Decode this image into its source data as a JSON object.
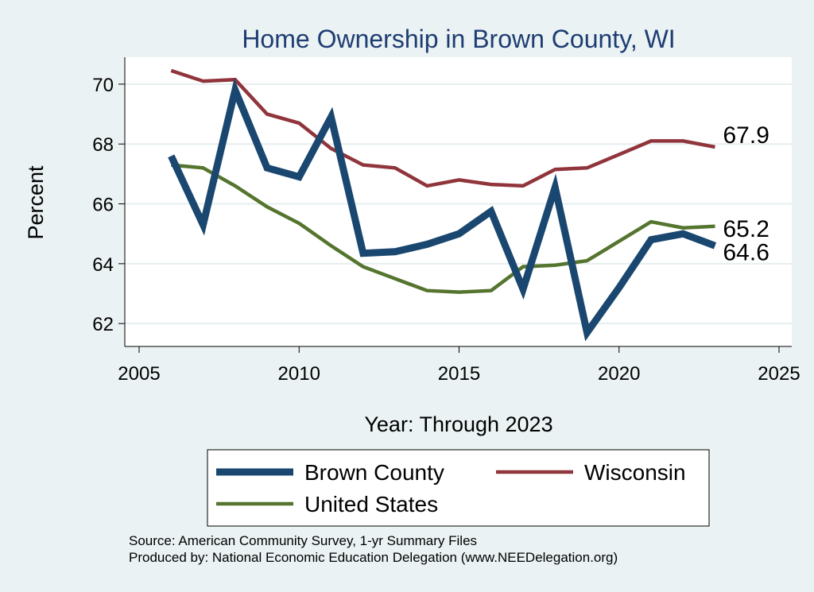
{
  "chart_data": {
    "type": "line",
    "title": "Home Ownership in Brown County, WI",
    "xlabel": "Year: Through 2023",
    "ylabel": "Percent",
    "xlim": [
      2005,
      2025
    ],
    "ylim": [
      61.5,
      70.9
    ],
    "x_ticks": [
      2005,
      2010,
      2015,
      2020,
      2025
    ],
    "y_ticks": [
      62,
      64,
      66,
      68,
      70
    ],
    "grid": true,
    "legend_position": "bottom",
    "x": [
      2006,
      2007,
      2008,
      2009,
      2010,
      2011,
      2012,
      2013,
      2014,
      2015,
      2016,
      2017,
      2018,
      2019,
      2020,
      2021,
      2022,
      2023
    ],
    "series": [
      {
        "name": "Brown County",
        "color": "#1a476f",
        "values": [
          67.6,
          65.3,
          69.8,
          67.2,
          66.9,
          68.9,
          64.35,
          64.4,
          64.65,
          65.0,
          65.75,
          63.15,
          66.55,
          61.7,
          63.2,
          64.8,
          65.0,
          64.6
        ],
        "end_label": "64.6"
      },
      {
        "name": "Wisconsin",
        "color": "#90353b",
        "values": [
          70.45,
          70.1,
          70.15,
          69.0,
          68.7,
          67.85,
          67.3,
          67.2,
          66.6,
          66.8,
          66.65,
          66.6,
          67.15,
          67.2,
          67.65,
          68.1,
          68.1,
          67.9
        ],
        "end_label": "67.9"
      },
      {
        "name": "United States",
        "color": "#55752f",
        "values": [
          67.3,
          67.2,
          66.6,
          65.9,
          65.35,
          64.6,
          63.9,
          63.5,
          63.1,
          63.05,
          63.1,
          63.9,
          63.95,
          64.1,
          64.75,
          65.4,
          65.2,
          65.25
        ],
        "end_label": "65.2"
      }
    ]
  },
  "footer": {
    "source": "Source: American Community Survey, 1-yr Summary Files",
    "producer": "Produced by: National Economic Education Delegation (www.NEEDelegation.org)"
  }
}
